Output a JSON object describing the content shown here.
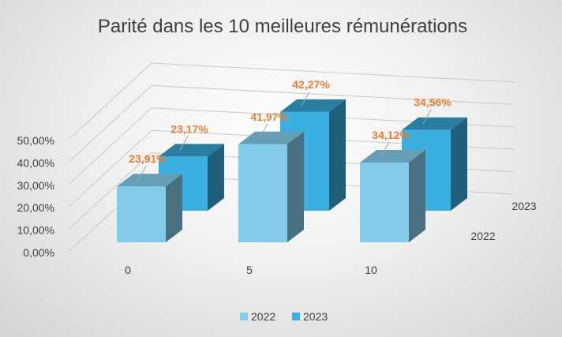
{
  "chart_data": {
    "type": "bar",
    "title": "Parité dans les 10 meilleures rémunérations",
    "categories": [
      "0",
      "5",
      "10"
    ],
    "series": [
      {
        "name": "2022",
        "values": [
          23.91,
          41.97,
          34.12
        ],
        "labels": [
          "23,91%",
          "41,97%",
          "34,12%"
        ],
        "color": "#83CBEB"
      },
      {
        "name": "2023",
        "values": [
          23.17,
          42.27,
          34.56
        ],
        "labels": [
          "23,17%",
          "42,27%",
          "34,56%"
        ],
        "color": "#3AAFE0"
      }
    ],
    "y_ticks": [
      "0,00%",
      "10,00%",
      "20,00%",
      "30,00%",
      "40,00%",
      "50,00%"
    ],
    "ylim": [
      0,
      50
    ],
    "depth_labels": [
      "2022",
      "2023"
    ],
    "legend": [
      "2022",
      "2023"
    ],
    "legend_position": "bottom",
    "grid": true,
    "label_color": "#ED7D31"
  }
}
